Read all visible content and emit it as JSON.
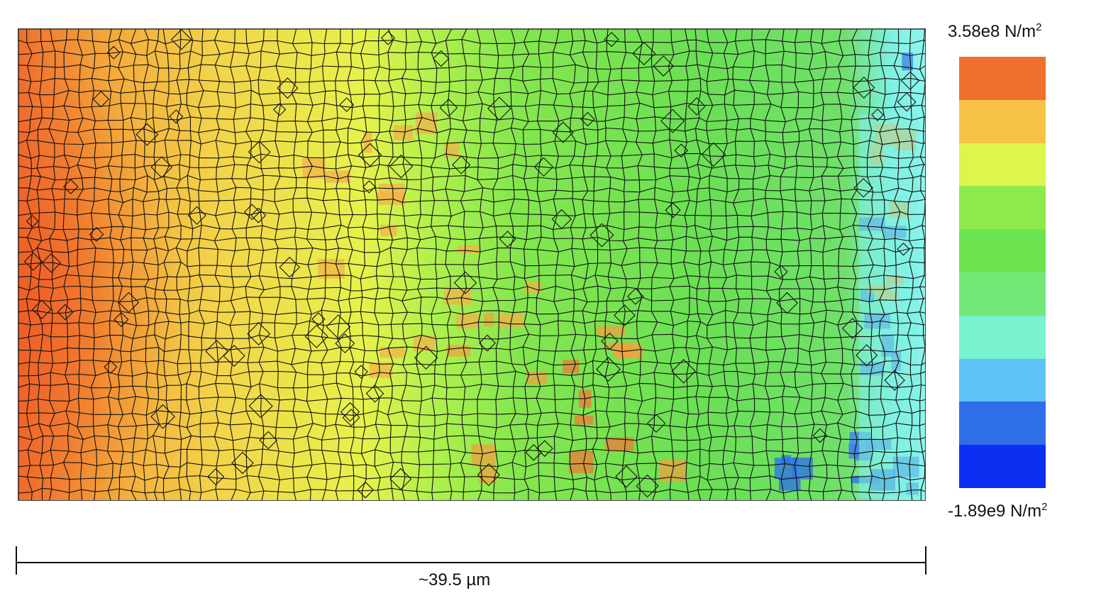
{
  "legend": {
    "max_value": "3.58e8 N/m",
    "min_value": "-1.89e9 N/m",
    "unit_superscript": "2",
    "colors": [
      "#ef6f2f",
      "#f6c244",
      "#ddf54d",
      "#8ee94c",
      "#6ce450",
      "#72e879",
      "#78f2cf",
      "#5fc2f4",
      "#2f6ee9",
      "#0c2ff2"
    ]
  },
  "scale_bar": {
    "label": "~39.5 µm"
  },
  "stress_map": {
    "description_colors": {
      "high": "#ef6f2f",
      "mid_high": "#f3d44a",
      "mid": "#e6f24b",
      "low_mid": "#84e64e",
      "low": "#6bdf55",
      "very_low": "#7ff0e0",
      "minimum": "#1b4ff0"
    },
    "mesh_color": "#111111"
  }
}
